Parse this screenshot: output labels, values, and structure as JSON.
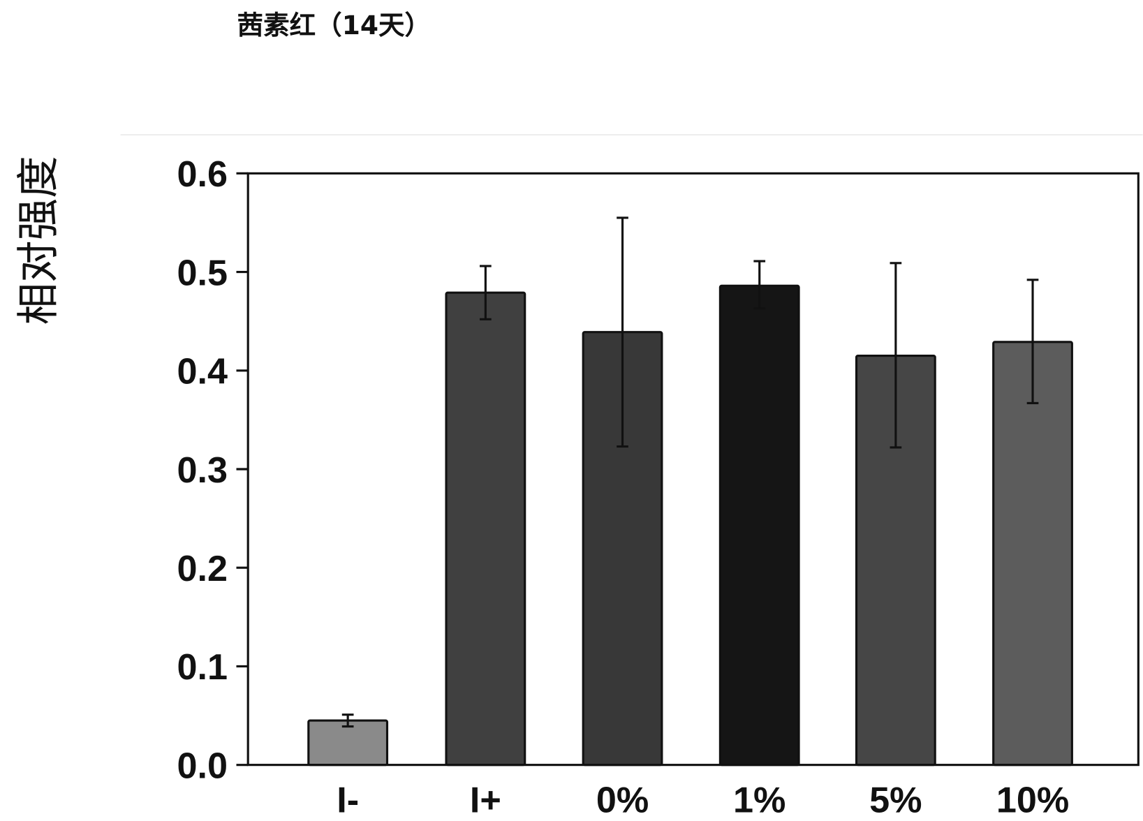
{
  "chart_data": {
    "type": "bar",
    "title": "茜素红（14天）",
    "xlabel": "",
    "ylabel": "相对强度",
    "ylim": [
      0,
      0.6
    ],
    "yticks": [
      "0.0",
      "0.1",
      "0.2",
      "0.3",
      "0.4",
      "0.5",
      "0.6"
    ],
    "grid": false,
    "categories": [
      "I-",
      "I+",
      "0%",
      "1%",
      "5%",
      "10%"
    ],
    "values": [
      0.045,
      0.479,
      0.439,
      0.486,
      0.415,
      0.429
    ],
    "error_low": [
      0.039,
      0.452,
      0.323,
      0.463,
      0.322,
      0.367
    ],
    "error_high": [
      0.051,
      0.506,
      0.555,
      0.511,
      0.509,
      0.492
    ],
    "colors": [
      "#8a8a8a",
      "#404040",
      "#383838",
      "#151515",
      "#464646",
      "#5c5c5c"
    ]
  }
}
